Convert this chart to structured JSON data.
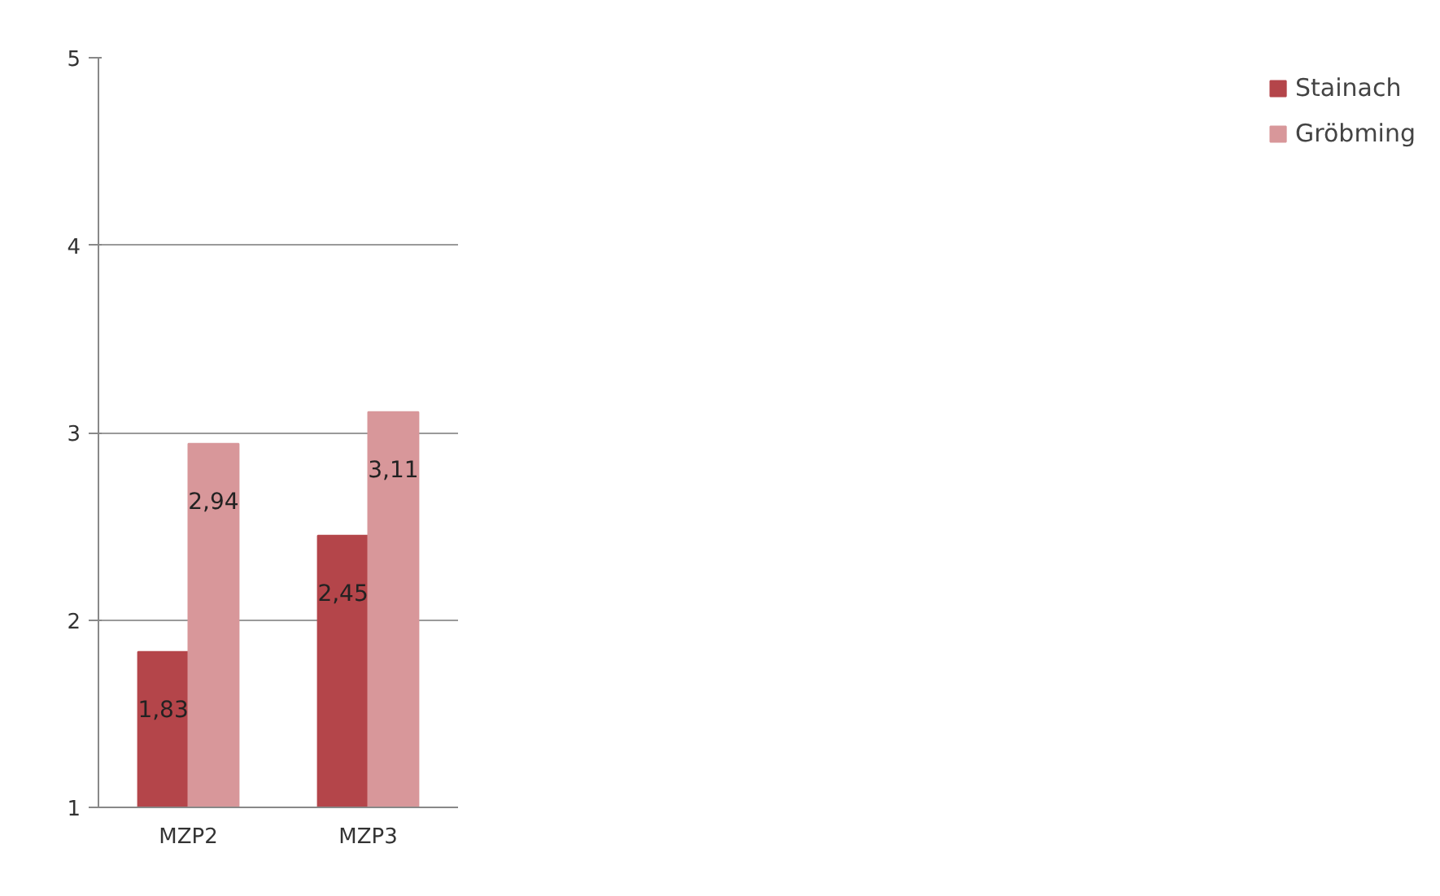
{
  "chart_data": {
    "type": "bar",
    "categories": [
      "MZP2",
      "MZP3"
    ],
    "series": [
      {
        "name": "Stainach",
        "color": "#b4454a",
        "values": [
          1.83,
          2.45
        ],
        "value_labels": [
          "1,83",
          "2,45"
        ]
      },
      {
        "name": "Gröbming",
        "color": "#d8979a",
        "values": [
          2.94,
          3.11
        ],
        "value_labels": [
          "2,94",
          "3,11"
        ]
      }
    ],
    "ylim": [
      1,
      5
    ],
    "yticks": [
      1,
      2,
      3,
      4,
      5
    ],
    "grid": "y",
    "legend": "right"
  }
}
